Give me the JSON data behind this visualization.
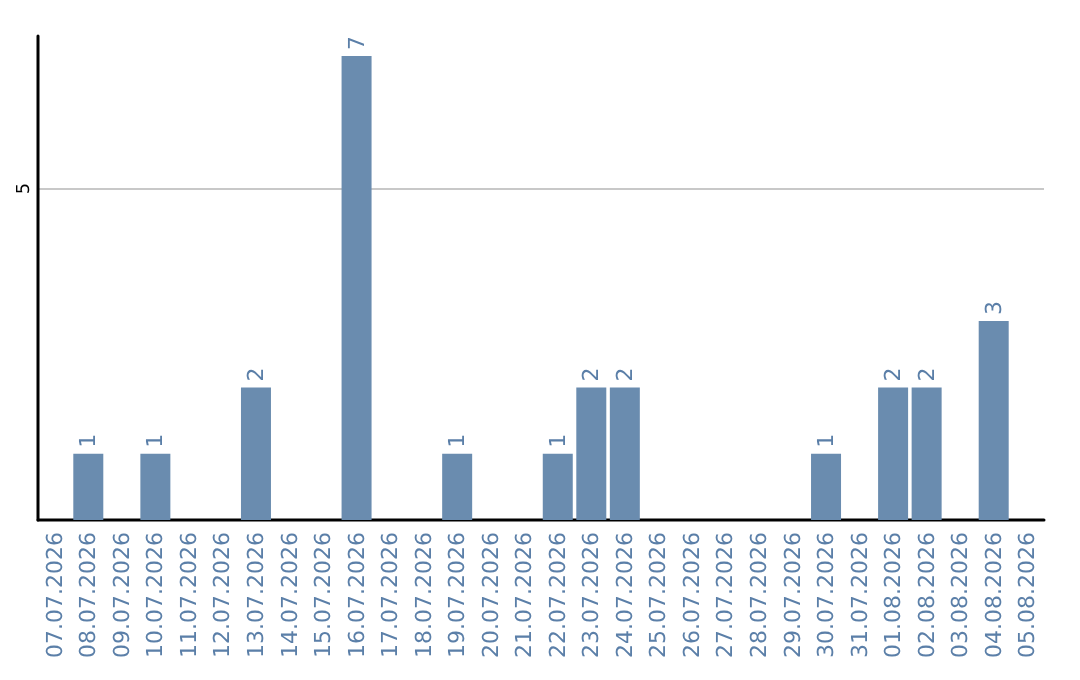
{
  "chart_data": {
    "type": "bar",
    "categories": [
      "07.07.2026",
      "08.07.2026",
      "09.07.2026",
      "10.07.2026",
      "11.07.2026",
      "12.07.2026",
      "13.07.2026",
      "14.07.2026",
      "15.07.2026",
      "16.07.2026",
      "17.07.2026",
      "18.07.2026",
      "19.07.2026",
      "20.07.2026",
      "21.07.2026",
      "22.07.2026",
      "23.07.2026",
      "24.07.2026",
      "25.07.2026",
      "26.07.2026",
      "27.07.2026",
      "28.07.2026",
      "29.07.2026",
      "30.07.2026",
      "31.07.2026",
      "01.08.2026",
      "02.08.2026",
      "03.08.2026",
      "04.08.2026",
      "05.08.2026"
    ],
    "values": [
      null,
      1,
      null,
      1,
      null,
      null,
      2,
      null,
      null,
      7,
      null,
      null,
      1,
      null,
      null,
      1,
      2,
      2,
      null,
      null,
      null,
      null,
      null,
      1,
      null,
      2,
      2,
      null,
      3,
      null
    ],
    "color": "#6a8caf",
    "ylim": [
      0,
      7.3
    ],
    "yticks": [
      5
    ],
    "grid": "y",
    "data_labels": true
  }
}
